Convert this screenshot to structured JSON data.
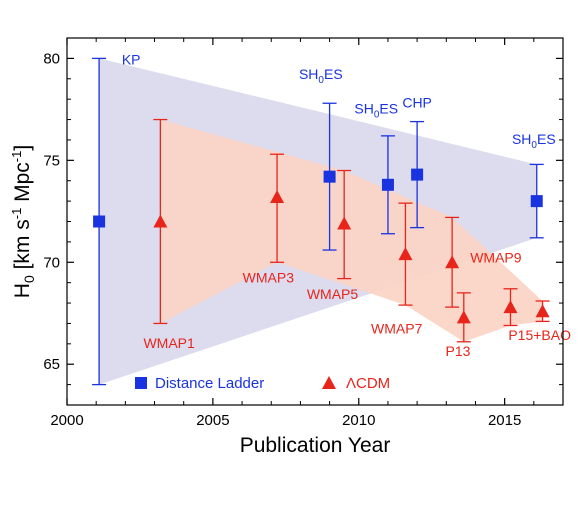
{
  "chart_data": {
    "type": "scatter",
    "xlabel": "Publication Year",
    "ylabel_parts": {
      "main": "H",
      "sub": "0",
      "units_pre": " [km s",
      "sup": "-1",
      "units_post": " Mpc",
      "sup2": "-1",
      "close": "]"
    },
    "xlim": [
      2000,
      2017
    ],
    "ylim": [
      63,
      81
    ],
    "xticks": [
      2000,
      2005,
      2010,
      2015
    ],
    "yticks": [
      65,
      70,
      75,
      80
    ],
    "colors": {
      "distance_ladder": "#1a33e0",
      "lcdm": "#e8251b",
      "ladder_band": "#dcdcee",
      "lcdm_band": "#fbd3c4"
    },
    "series": [
      {
        "name": "Distance Ladder",
        "marker": "square",
        "points": [
          {
            "label": "KP",
            "x": 2001.1,
            "y": 72.0,
            "lo": 64.0,
            "hi": 80.0
          },
          {
            "label": "SH0ES",
            "x": 2009.0,
            "y": 74.2,
            "lo": 70.6,
            "hi": 77.8
          },
          {
            "label": "SH0ES",
            "x": 2011.0,
            "y": 73.8,
            "lo": 71.4,
            "hi": 76.2
          },
          {
            "label": "CHP",
            "x": 2012.0,
            "y": 74.3,
            "lo": 71.7,
            "hi": 76.9
          },
          {
            "label": "SH0ES",
            "x": 2016.1,
            "y": 73.0,
            "lo": 71.2,
            "hi": 74.8
          }
        ]
      },
      {
        "name": "ΛCDM",
        "marker": "triangle",
        "points": [
          {
            "label": "WMAP1",
            "x": 2003.2,
            "y": 72.0,
            "lo": 67.0,
            "hi": 77.0
          },
          {
            "label": "WMAP3",
            "x": 2007.2,
            "y": 73.2,
            "lo": 70.0,
            "hi": 75.3
          },
          {
            "label": "WMAP5",
            "x": 2009.5,
            "y": 71.9,
            "lo": 69.2,
            "hi": 74.5
          },
          {
            "label": "WMAP7",
            "x": 2011.6,
            "y": 70.4,
            "lo": 67.9,
            "hi": 72.9
          },
          {
            "label": "WMAP9",
            "x": 2013.2,
            "y": 70.0,
            "lo": 67.8,
            "hi": 72.2
          },
          {
            "label": "P13",
            "x": 2013.6,
            "y": 67.3,
            "lo": 66.1,
            "hi": 68.5
          },
          {
            "label": "P15",
            "x": 2015.2,
            "y": 67.8,
            "lo": 66.9,
            "hi": 68.7
          },
          {
            "label": "P15+BAO",
            "x": 2016.3,
            "y": 67.6,
            "lo": 67.1,
            "hi": 68.1
          }
        ]
      }
    ],
    "annotations": [
      {
        "id": "kp",
        "text": "KP",
        "color": "#1a33e0",
        "x": 2002.2,
        "y": 79.7
      },
      {
        "id": "shoes1",
        "text": "SH",
        "sub": "0",
        "tail": "ES",
        "color": "#1a33e0",
        "x": 2008.7,
        "y": 79.0
      },
      {
        "id": "shoes2",
        "text": "SH",
        "sub": "0",
        "tail": "ES",
        "color": "#1a33e0",
        "x": 2010.6,
        "y": 77.3
      },
      {
        "id": "chp",
        "text": "CHP",
        "color": "#1a33e0",
        "x": 2012.0,
        "y": 77.6
      },
      {
        "id": "shoes3",
        "text": "SH",
        "sub": "0",
        "tail": "ES",
        "color": "#1a33e0",
        "x": 2016.0,
        "y": 75.8
      },
      {
        "id": "wmap1",
        "text": "WMAP1",
        "color": "#e8251b",
        "x": 2003.5,
        "y": 65.8
      },
      {
        "id": "wmap3",
        "text": "WMAP3",
        "color": "#e8251b",
        "x": 2006.9,
        "y": 69.0
      },
      {
        "id": "wmap5",
        "text": "WMAP5",
        "color": "#e8251b",
        "x": 2009.1,
        "y": 68.2
      },
      {
        "id": "wmap7",
        "text": "WMAP7",
        "color": "#e8251b",
        "x": 2011.3,
        "y": 66.5
      },
      {
        "id": "wmap9",
        "text": "WMAP9",
        "color": "#e8251b",
        "x": 2014.7,
        "y": 70.0
      },
      {
        "id": "p13",
        "text": "P13",
        "color": "#e8251b",
        "x": 2013.4,
        "y": 65.4
      },
      {
        "id": "p15bao",
        "text": "P15+BAO",
        "color": "#e8251b",
        "x": 2016.2,
        "y": 66.2
      }
    ],
    "bands": {
      "ladder": [
        [
          2001.1,
          80.0
        ],
        [
          2016.1,
          74.8
        ],
        [
          2016.1,
          71.2
        ],
        [
          2001.1,
          64.0
        ]
      ],
      "lcdm": [
        [
          2003.2,
          77.0
        ],
        [
          2009.5,
          74.5
        ],
        [
          2013.2,
          72.2
        ],
        [
          2016.3,
          68.1
        ],
        [
          2016.3,
          67.1
        ],
        [
          2015.2,
          66.9
        ],
        [
          2013.6,
          66.1
        ],
        [
          2011.6,
          67.9
        ],
        [
          2007.2,
          70.0
        ],
        [
          2003.2,
          67.0
        ]
      ]
    },
    "legend": [
      {
        "label": "Distance Ladder",
        "marker": "square",
        "color": "#1a33e0"
      },
      {
        "label": "ΛCDM",
        "marker": "triangle",
        "color": "#e8251b"
      }
    ],
    "legend_position": "bottom-left"
  }
}
